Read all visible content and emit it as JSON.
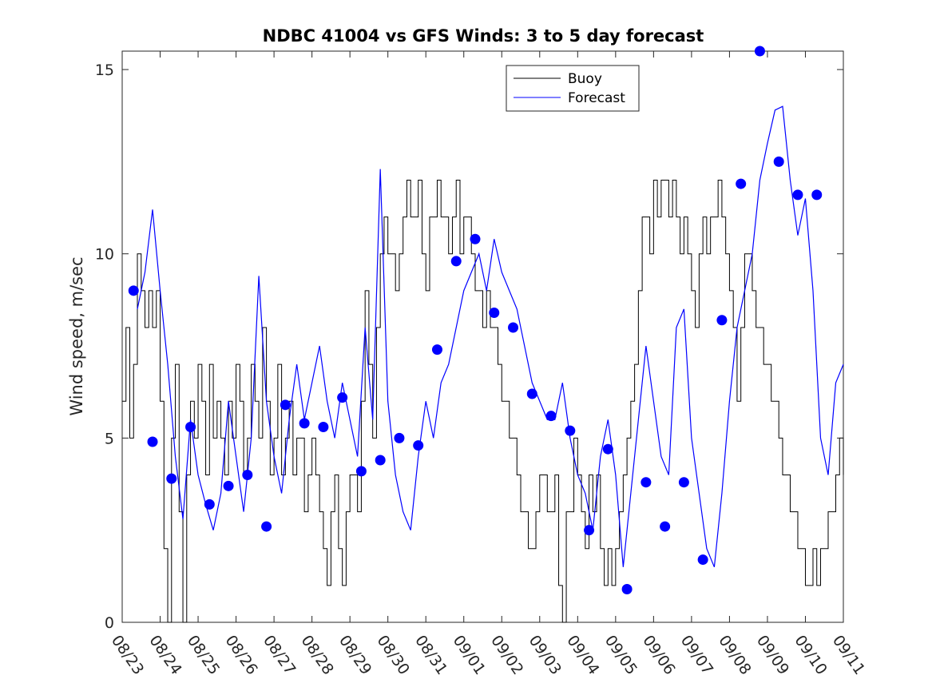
{
  "chart_data": {
    "type": "line",
    "title": "NDBC 41004 vs GFS Winds: 3 to 5 day forecast",
    "xlabel": "",
    "ylabel": "Wind speed, m/sec",
    "xlim": [
      0,
      19
    ],
    "ylim": [
      0,
      15.5
    ],
    "x_tick_values": [
      0,
      1,
      2,
      3,
      4,
      5,
      6,
      7,
      8,
      9,
      10,
      11,
      12,
      13,
      14,
      15,
      16,
      17,
      18,
      19
    ],
    "x_tick_labels": [
      "08/23",
      "08/24",
      "08/25",
      "08/26",
      "08/27",
      "08/28",
      "08/29",
      "08/30",
      "08/31",
      "09/01",
      "09/02",
      "09/03",
      "09/04",
      "09/05",
      "09/06",
      "09/07",
      "09/08",
      "09/09",
      "09/10",
      "09/11"
    ],
    "y_tick_values": [
      0,
      5,
      10,
      15
    ],
    "y_tick_labels": [
      "0",
      "5",
      "10",
      "15"
    ],
    "legend": {
      "position": "top-center",
      "entries": [
        "Buoy",
        "Forecast"
      ]
    },
    "colors": {
      "buoy": "#000000",
      "forecast": "#0000ff",
      "marker": "#0000ff"
    },
    "series": [
      {
        "name": "Buoy",
        "style": "step",
        "x": [
          0,
          0.1,
          0.2,
          0.3,
          0.4,
          0.5,
          0.6,
          0.7,
          0.8,
          0.9,
          1.0,
          1.1,
          1.2,
          1.3,
          1.4,
          1.5,
          1.6,
          1.7,
          1.8,
          1.9,
          2.0,
          2.1,
          2.2,
          2.3,
          2.4,
          2.5,
          2.6,
          2.7,
          2.8,
          2.9,
          3.0,
          3.1,
          3.2,
          3.3,
          3.4,
          3.5,
          3.6,
          3.7,
          3.8,
          3.9,
          4.0,
          4.1,
          4.2,
          4.3,
          4.4,
          4.5,
          4.6,
          4.7,
          4.8,
          4.9,
          5.0,
          5.1,
          5.2,
          5.3,
          5.4,
          5.5,
          5.6,
          5.7,
          5.8,
          5.9,
          6.0,
          6.1,
          6.2,
          6.3,
          6.4,
          6.5,
          6.6,
          6.7,
          6.8,
          6.9,
          7.0,
          7.1,
          7.2,
          7.3,
          7.4,
          7.5,
          7.6,
          7.7,
          7.8,
          7.9,
          8.0,
          8.1,
          8.2,
          8.3,
          8.4,
          8.5,
          8.6,
          8.7,
          8.8,
          8.9,
          9.0,
          9.1,
          9.2,
          9.3,
          9.4,
          9.5,
          9.6,
          9.7,
          9.8,
          9.9,
          10.0,
          10.1,
          10.2,
          10.3,
          10.4,
          10.5,
          10.6,
          10.7,
          10.8,
          10.9,
          11.0,
          11.1,
          11.2,
          11.3,
          11.4,
          11.5,
          11.6,
          11.7,
          11.8,
          11.9,
          12.0,
          12.1,
          12.2,
          12.3,
          12.4,
          12.5,
          12.6,
          12.7,
          12.8,
          12.9,
          13.0,
          13.1,
          13.2,
          13.3,
          13.4,
          13.5,
          13.6,
          13.7,
          13.8,
          13.9,
          14.0,
          14.1,
          14.2,
          14.3,
          14.4,
          14.5,
          14.6,
          14.7,
          14.8,
          14.9,
          15.0,
          15.1,
          15.2,
          15.3,
          15.4,
          15.5,
          15.6,
          15.7,
          15.8,
          15.9,
          16.0,
          16.1,
          16.2,
          16.3,
          16.4,
          16.5,
          16.6,
          16.7,
          16.8,
          16.9,
          17.0,
          17.1,
          17.2,
          17.3,
          17.4,
          17.5,
          17.6,
          17.7,
          17.8,
          17.9,
          18.0,
          18.1,
          18.2,
          18.3,
          18.4,
          18.5,
          18.6,
          18.7,
          18.8,
          18.9,
          19.0
        ],
        "values": [
          6,
          8,
          5,
          7,
          10,
          9,
          8,
          9,
          8,
          9,
          6,
          2,
          0,
          5,
          7,
          3,
          0,
          4,
          6,
          5,
          7,
          6,
          4,
          7,
          5,
          6,
          5,
          4,
          6,
          5,
          7,
          6,
          4,
          5,
          7,
          6,
          5,
          8,
          6,
          4,
          5,
          7,
          4,
          5,
          6,
          4,
          5,
          5,
          3,
          4,
          5,
          4,
          3,
          2,
          1,
          3,
          4,
          2,
          1,
          3,
          4,
          4,
          3,
          6,
          9,
          7,
          5,
          8,
          10,
          11,
          10,
          10,
          9,
          10,
          11,
          12,
          11,
          11,
          12,
          10,
          9,
          11,
          11,
          12,
          11,
          11,
          10,
          11,
          12,
          10,
          11,
          11,
          10,
          9,
          9,
          8,
          9,
          8,
          8,
          7,
          6,
          6,
          5,
          5,
          4,
          3,
          3,
          2,
          2,
          3,
          4,
          4,
          3,
          3,
          4,
          1,
          0,
          3,
          3,
          5,
          4,
          3,
          2,
          4,
          3,
          4,
          2,
          1,
          2,
          1,
          2,
          3,
          4,
          5,
          6,
          7,
          9,
          11,
          11,
          10,
          12,
          11,
          12,
          12,
          11,
          12,
          11,
          10,
          11,
          10,
          9,
          8,
          10,
          11,
          10,
          11,
          11,
          12,
          11,
          10,
          9,
          8,
          6,
          8,
          10,
          10,
          9,
          8,
          8,
          7,
          7,
          6,
          6,
          5,
          4,
          4,
          3,
          3,
          2,
          2,
          1,
          1,
          2,
          1,
          2,
          2,
          3,
          3,
          4,
          5,
          4
        ]
      },
      {
        "name": "Forecast",
        "x": [
          0.4,
          0.6,
          0.8,
          1.0,
          1.2,
          1.4,
          1.6,
          1.8,
          2.0,
          2.2,
          2.4,
          2.6,
          2.8,
          3.0,
          3.2,
          3.4,
          3.6,
          3.8,
          4.0,
          4.2,
          4.4,
          4.6,
          4.8,
          5.0,
          5.2,
          5.4,
          5.6,
          5.8,
          6.0,
          6.2,
          6.4,
          6.6,
          6.8,
          7.0,
          7.2,
          7.4,
          7.6,
          7.8,
          8.0,
          8.2,
          8.4,
          8.6,
          8.8,
          9.0,
          9.2,
          9.4,
          9.6,
          9.8,
          10.0,
          10.2,
          10.4,
          10.6,
          10.8,
          11.0,
          11.2,
          11.4,
          11.6,
          11.8,
          12.0,
          12.2,
          12.4,
          12.6,
          12.8,
          13.0,
          13.2,
          13.4,
          13.6,
          13.8,
          14.0,
          14.2,
          14.4,
          14.6,
          14.8,
          15.0,
          15.2,
          15.4,
          15.6,
          15.8,
          16.0,
          16.2,
          16.4,
          16.6,
          16.8,
          17.0,
          17.2,
          17.4,
          17.6,
          17.8,
          18.0,
          18.2,
          18.4,
          18.6,
          18.8,
          19.0
        ],
        "values": [
          8.5,
          9.5,
          11.2,
          9.0,
          7.0,
          4.5,
          2.8,
          5.5,
          4.0,
          3.2,
          2.5,
          3.5,
          6.0,
          4.5,
          3.0,
          5.0,
          9.4,
          6.0,
          4.5,
          3.5,
          5.5,
          7.0,
          5.5,
          6.5,
          7.5,
          6.0,
          5.0,
          6.5,
          5.5,
          4.5,
          8.0,
          5.5,
          12.3,
          6.0,
          4.0,
          3.0,
          2.5,
          4.5,
          6.0,
          5.0,
          6.5,
          7.0,
          8.0,
          9.0,
          9.5,
          10.0,
          9.0,
          10.4,
          9.5,
          9.0,
          8.5,
          7.5,
          6.5,
          6.0,
          5.5,
          5.5,
          6.5,
          5.0,
          4.0,
          3.5,
          2.5,
          4.5,
          5.5,
          4.0,
          1.5,
          3.5,
          5.5,
          7.5,
          6.0,
          4.5,
          4.0,
          8.0,
          8.5,
          5.0,
          3.5,
          2.0,
          1.5,
          3.5,
          6.0,
          8.0,
          9.0,
          10.0,
          12.0,
          13.0,
          13.9,
          14.0,
          12.0,
          10.5,
          11.5,
          9.0,
          5.0,
          4.0,
          6.5,
          7.0
        ]
      },
      {
        "name": "Forecast markers",
        "style": "markers",
        "x": [
          0.3,
          0.8,
          1.3,
          1.8,
          2.3,
          2.8,
          3.3,
          3.8,
          4.3,
          4.8,
          5.3,
          5.8,
          6.3,
          6.8,
          7.3,
          7.8,
          8.3,
          8.8,
          9.3,
          9.8,
          10.3,
          10.8,
          11.3,
          11.8,
          12.3,
          12.8,
          13.3,
          13.8,
          14.3,
          14.8,
          15.3,
          15.8,
          16.3,
          16.8,
          17.3,
          17.8,
          18.3
        ],
        "values": [
          9.0,
          4.9,
          3.9,
          5.3,
          3.2,
          3.7,
          4.0,
          2.6,
          5.9,
          5.4,
          5.3,
          6.1,
          4.1,
          4.4,
          5.0,
          4.8,
          7.4,
          9.8,
          10.4,
          8.4,
          8.0,
          6.2,
          5.6,
          5.2,
          2.5,
          4.7,
          0.9,
          3.8,
          2.6,
          3.8,
          1.7,
          8.2,
          11.9,
          15.5,
          12.5,
          11.6,
          11.6
        ]
      }
    ]
  }
}
